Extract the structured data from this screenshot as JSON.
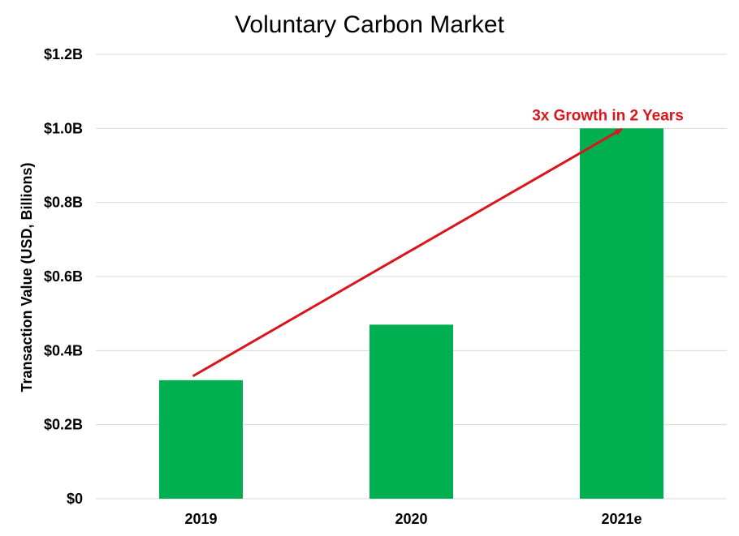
{
  "chart_data": {
    "type": "bar",
    "title": "Voluntary Carbon Market",
    "ylabel": "Transaction Value (USD, Billions)",
    "xlabel": "",
    "categories": [
      "2019",
      "2020",
      "2021e"
    ],
    "values": [
      0.32,
      0.47,
      1.0
    ],
    "ylim": [
      0,
      1.2
    ],
    "yticks": [
      0,
      0.2,
      0.4,
      0.6,
      0.8,
      1.0,
      1.2
    ],
    "ytick_labels": [
      "$0",
      "$0.2B",
      "$0.4B",
      "$0.6B",
      "$0.8B",
      "$1.0B",
      "$1.2B"
    ],
    "grid": true,
    "bar_color": "#00b050",
    "annotation": {
      "text": "3x Growth in 2 Years",
      "color": "#d9161c",
      "from_category": "2019",
      "to_category": "2021e"
    }
  }
}
